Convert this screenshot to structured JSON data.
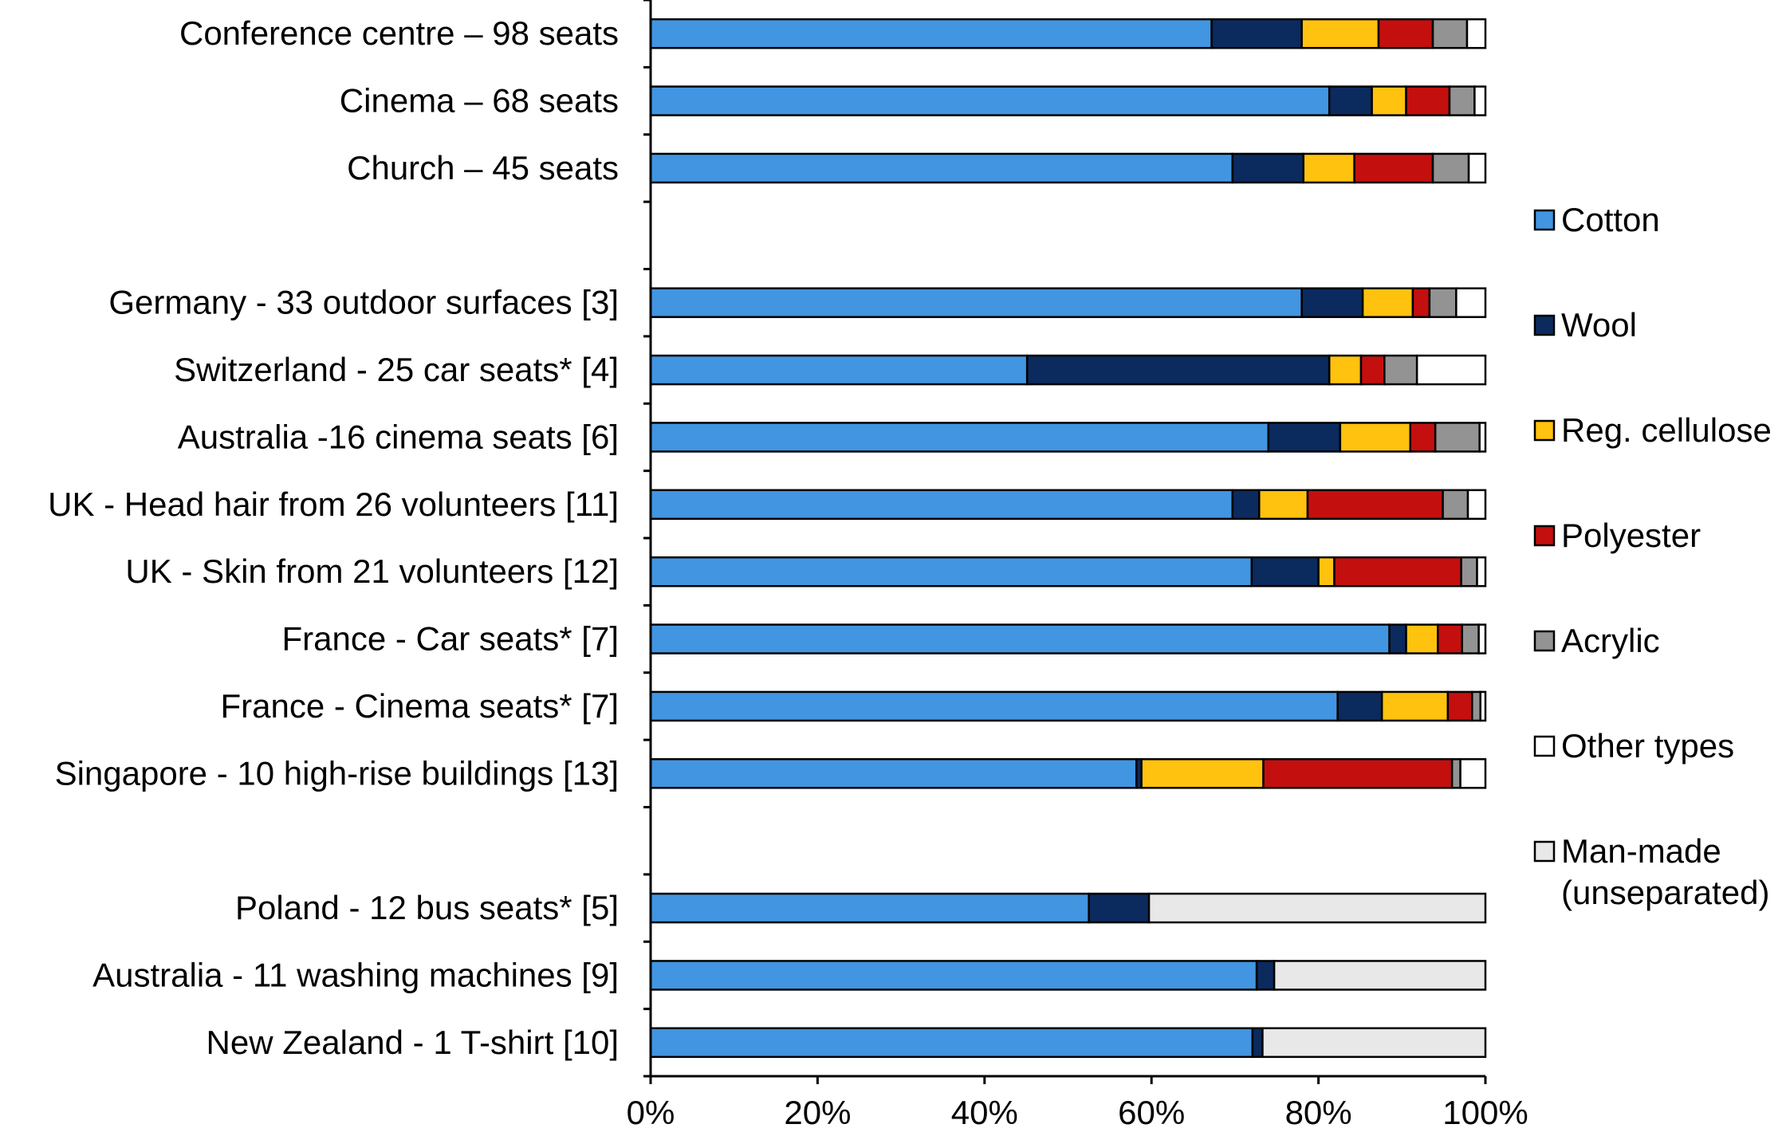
{
  "chart_data": {
    "type": "bar",
    "orientation": "horizontal",
    "stacked": true,
    "title": "",
    "xlabel": "",
    "ylabel": "",
    "xlim": [
      0,
      100
    ],
    "x_ticks": [
      "0%",
      "20%",
      "40%",
      "60%",
      "80%",
      "100%"
    ],
    "grid": false,
    "legend_position": "right",
    "categories": [
      "Conference centre – 98 seats",
      "Cinema – 68 seats",
      "Church – 45 seats",
      "",
      "Germany - 33 outdoor surfaces [3]",
      "Switzerland - 25 car seats* [4]",
      "Australia -16 cinema seats [6]",
      "UK - Head hair from 26 volunteers [11]",
      "UK - Skin from 21 volunteers [12]",
      "France - Car seats* [7]",
      "France - Cinema seats* [7]",
      "Singapore - 10 high-rise buildings [13]",
      "",
      "Poland - 12 bus seats* [5]",
      "Australia - 11 washing machines [9]",
      "New Zealand - 1 T-shirt  [10]"
    ],
    "series": [
      {
        "name": "Cotton",
        "color": "#4295E1",
        "values": [
          67.2,
          81.3,
          69.7,
          null,
          78.0,
          45.1,
          74.0,
          69.7,
          72.0,
          88.5,
          82.3,
          58.2,
          null,
          52.5,
          72.6,
          72.1
        ]
      },
      {
        "name": "Wool",
        "color": "#0B2A5E",
        "values": [
          10.8,
          5.1,
          8.5,
          null,
          7.3,
          36.2,
          8.6,
          3.2,
          8.0,
          2.0,
          5.3,
          0.6,
          null,
          7.2,
          2.1,
          1.2
        ]
      },
      {
        "name": "Reg. cellulose",
        "color": "#FFC20E",
        "values": [
          9.2,
          4.1,
          6.1,
          null,
          6.0,
          3.8,
          8.4,
          5.8,
          1.9,
          3.8,
          7.9,
          14.6,
          null,
          0,
          0,
          0
        ]
      },
      {
        "name": "Polyester",
        "color": "#C40F0F",
        "values": [
          6.5,
          5.2,
          9.4,
          null,
          2.0,
          2.8,
          3.0,
          16.2,
          15.2,
          2.9,
          2.9,
          22.6,
          null,
          0,
          0,
          0
        ]
      },
      {
        "name": "Acrylic",
        "color": "#939393",
        "values": [
          4.1,
          3.0,
          4.3,
          null,
          3.2,
          3.9,
          5.3,
          3.0,
          1.9,
          2.0,
          1.0,
          1.0,
          null,
          0,
          0,
          0
        ]
      },
      {
        "name": "Other types",
        "color": "#FFFFFF",
        "values": [
          2.2,
          1.3,
          2.0,
          null,
          3.5,
          8.2,
          0.7,
          2.1,
          1.0,
          0.8,
          0.6,
          3.0,
          null,
          0,
          0,
          0
        ]
      },
      {
        "name": "Man-made\n(unseparated)",
        "color": "#E8E8E8",
        "values": [
          0,
          0,
          0,
          null,
          0,
          0,
          0,
          0,
          0,
          0,
          0,
          0,
          null,
          40.3,
          25.3,
          26.7
        ]
      }
    ]
  }
}
